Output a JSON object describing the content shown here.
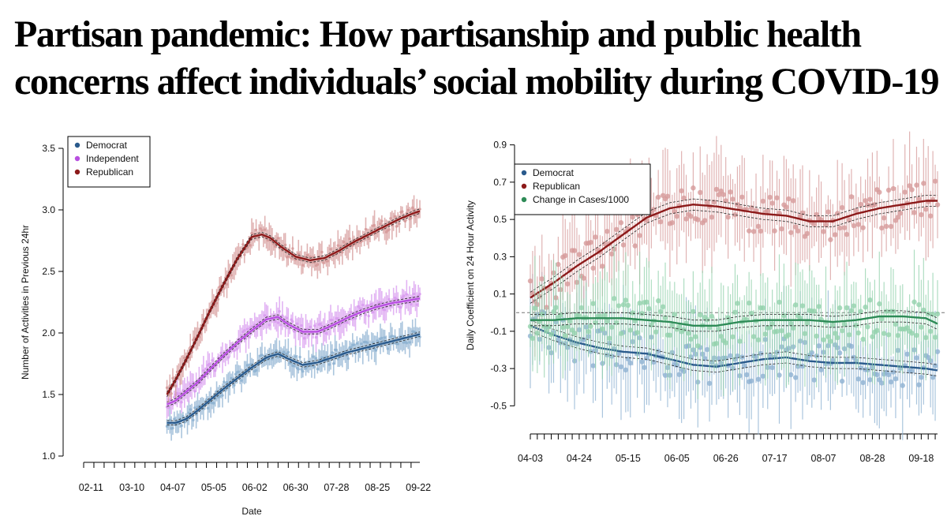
{
  "headline": {
    "line1": "Partisan pandemic: How partisanship and public health",
    "line2": "concerns affect individuals’ social mobility during COVID-19"
  },
  "chart_data": [
    {
      "type": "line",
      "title": "",
      "xlabel": "Date",
      "ylabel": "Number of Activities in Previous 24hr",
      "ylim": [
        1.0,
        3.5
      ],
      "yticks": [
        "1.0",
        "1.5",
        "2.0",
        "2.5",
        "3.0",
        "3.5"
      ],
      "xtick_labels": [
        "02-11",
        "03-10",
        "04-07",
        "05-05",
        "06-02",
        "06-30",
        "07-28",
        "08-25",
        "09-22"
      ],
      "x_range_days": [
        0,
        230
      ],
      "x_label_days": [
        5,
        33,
        61,
        89,
        117,
        145,
        173,
        201,
        229
      ],
      "legend_position": "top-left",
      "series": [
        {
          "name": "Democrat",
          "color": "#2a5a8c",
          "band_color": "#8eb2d2",
          "x_days": [
            57,
            63,
            70,
            78,
            86,
            95,
            105,
            115,
            125,
            133,
            140,
            150,
            160,
            170,
            180,
            190,
            200,
            210,
            220,
            230
          ],
          "values": [
            1.27,
            1.27,
            1.3,
            1.37,
            1.45,
            1.54,
            1.63,
            1.72,
            1.8,
            1.83,
            1.79,
            1.74,
            1.76,
            1.8,
            1.84,
            1.87,
            1.9,
            1.93,
            1.96,
            1.99
          ]
        },
        {
          "name": "Independent",
          "color": "#b84fe0",
          "band_color": "#d99cf0",
          "x_days": [
            57,
            63,
            70,
            78,
            86,
            95,
            105,
            115,
            125,
            133,
            140,
            150,
            160,
            170,
            180,
            190,
            200,
            210,
            220,
            230
          ],
          "values": [
            1.42,
            1.45,
            1.52,
            1.6,
            1.7,
            1.81,
            1.92,
            2.02,
            2.11,
            2.13,
            2.07,
            2.01,
            2.01,
            2.06,
            2.12,
            2.17,
            2.21,
            2.24,
            2.26,
            2.28
          ]
        },
        {
          "name": "Republican",
          "color": "#8c1a1a",
          "band_color": "#d69a9a",
          "x_days": [
            57,
            63,
            70,
            78,
            86,
            95,
            105,
            115,
            122,
            128,
            135,
            145,
            155,
            165,
            175,
            185,
            195,
            205,
            215,
            225,
            230
          ],
          "values": [
            1.5,
            1.62,
            1.78,
            1.97,
            2.17,
            2.38,
            2.6,
            2.78,
            2.8,
            2.77,
            2.7,
            2.62,
            2.59,
            2.61,
            2.67,
            2.74,
            2.8,
            2.86,
            2.92,
            2.97,
            2.99
          ]
        }
      ]
    },
    {
      "type": "line",
      "title": "",
      "xlabel": "",
      "ylabel": "Daily Coefficient on 24 Hour Activity",
      "ylim": [
        -0.6,
        1.0
      ],
      "yticks": [
        "-0.5",
        "-0.3",
        "-0.1",
        "0.1",
        "0.3",
        "0.5",
        "0.7",
        "0.9"
      ],
      "xtick_labels": [
        "04-03",
        "04-24",
        "05-15",
        "06-05",
        "06-26",
        "07-17",
        "08-07",
        "08-28",
        "09-18"
      ],
      "x_range_days": [
        0,
        175
      ],
      "x_label_days": [
        0,
        21,
        42,
        63,
        84,
        105,
        126,
        147,
        168
      ],
      "reference_line": 0,
      "legend_position": "top-left",
      "series": [
        {
          "name": "Democrat",
          "color": "#2a5a8c",
          "band_color": "#8eb2d2",
          "x_days": [
            0,
            10,
            20,
            30,
            40,
            50,
            60,
            70,
            80,
            90,
            100,
            110,
            120,
            130,
            140,
            150,
            160,
            170,
            175
          ],
          "values": [
            -0.07,
            -0.12,
            -0.16,
            -0.19,
            -0.21,
            -0.22,
            -0.25,
            -0.28,
            -0.29,
            -0.27,
            -0.25,
            -0.24,
            -0.26,
            -0.27,
            -0.27,
            -0.28,
            -0.29,
            -0.3,
            -0.31
          ]
        },
        {
          "name": "Republican",
          "color": "#8c1a1a",
          "band_color": "#d69a9a",
          "x_days": [
            0,
            10,
            20,
            30,
            40,
            50,
            60,
            70,
            80,
            90,
            100,
            110,
            120,
            130,
            140,
            150,
            160,
            170,
            175
          ],
          "values": [
            0.08,
            0.16,
            0.25,
            0.33,
            0.42,
            0.51,
            0.56,
            0.58,
            0.57,
            0.55,
            0.53,
            0.52,
            0.49,
            0.49,
            0.53,
            0.56,
            0.58,
            0.6,
            0.6
          ]
        },
        {
          "name": "Change in Cases/1000",
          "color": "#2e8b57",
          "band_color": "#93d2ad",
          "x_days": [
            0,
            10,
            20,
            30,
            40,
            50,
            60,
            70,
            80,
            90,
            100,
            110,
            120,
            130,
            140,
            150,
            160,
            170,
            175
          ],
          "values": [
            -0.04,
            -0.04,
            -0.03,
            -0.03,
            -0.03,
            -0.04,
            -0.05,
            -0.07,
            -0.07,
            -0.05,
            -0.04,
            -0.04,
            -0.04,
            -0.05,
            -0.04,
            -0.02,
            -0.02,
            -0.03,
            -0.06
          ]
        }
      ]
    }
  ]
}
